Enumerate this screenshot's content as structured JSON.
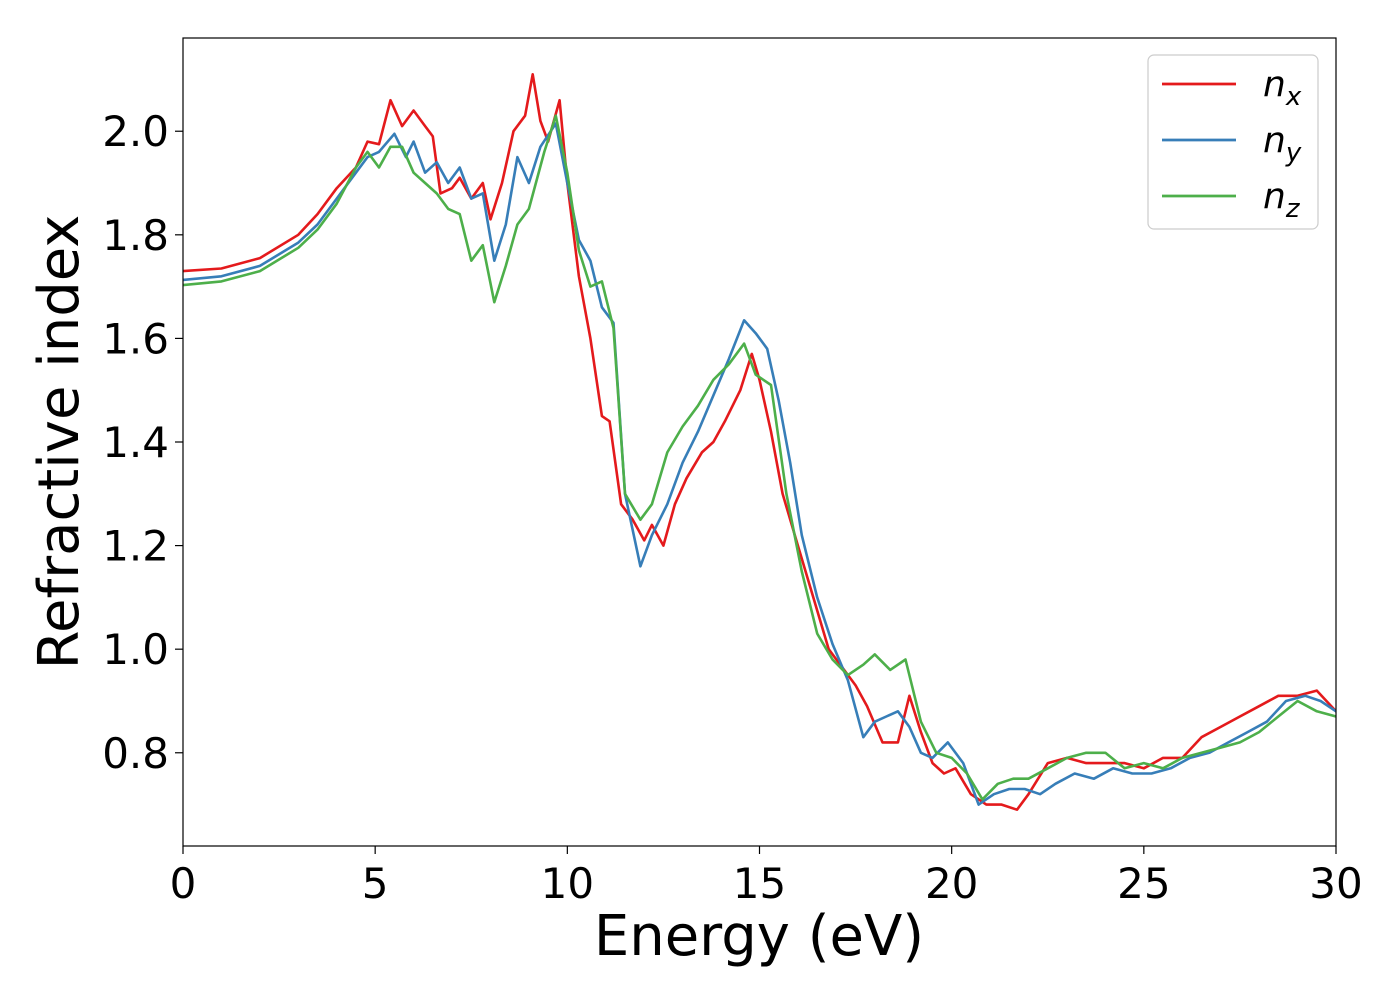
{
  "chart_data": {
    "type": "line",
    "title": "",
    "xlabel": "Energy (eV)",
    "ylabel": "Refractive index",
    "xlim": [
      0,
      30
    ],
    "ylim": [
      0.62,
      2.18
    ],
    "xticks": [
      0,
      5,
      10,
      15,
      20,
      25,
      30
    ],
    "yticks": [
      0.8,
      1.0,
      1.2,
      1.4,
      1.6,
      1.8,
      2.0
    ],
    "xtick_labels": [
      "0",
      "5",
      "10",
      "15",
      "20",
      "25",
      "30"
    ],
    "ytick_labels": [
      "0.8",
      "1.0",
      "1.2",
      "1.4",
      "1.6",
      "1.8",
      "2.0"
    ],
    "grid": false,
    "legend_position": "top-right",
    "series": [
      {
        "name": "n_x",
        "label_main": "n",
        "label_sub": "x",
        "color": "#e41a1c",
        "points": [
          [
            0,
            1.73
          ],
          [
            1,
            1.735
          ],
          [
            2,
            1.755
          ],
          [
            3,
            1.8
          ],
          [
            3.5,
            1.84
          ],
          [
            4,
            1.89
          ],
          [
            4.5,
            1.93
          ],
          [
            4.8,
            1.98
          ],
          [
            5.1,
            1.975
          ],
          [
            5.4,
            2.06
          ],
          [
            5.7,
            2.01
          ],
          [
            6.0,
            2.04
          ],
          [
            6.3,
            2.01
          ],
          [
            6.5,
            1.99
          ],
          [
            6.7,
            1.88
          ],
          [
            7.0,
            1.89
          ],
          [
            7.2,
            1.91
          ],
          [
            7.5,
            1.87
          ],
          [
            7.8,
            1.9
          ],
          [
            8.0,
            1.83
          ],
          [
            8.3,
            1.9
          ],
          [
            8.6,
            2.0
          ],
          [
            8.9,
            2.03
          ],
          [
            9.1,
            2.11
          ],
          [
            9.3,
            2.02
          ],
          [
            9.5,
            1.98
          ],
          [
            9.8,
            2.06
          ],
          [
            10.0,
            1.9
          ],
          [
            10.3,
            1.72
          ],
          [
            10.6,
            1.6
          ],
          [
            10.9,
            1.45
          ],
          [
            11.1,
            1.44
          ],
          [
            11.4,
            1.28
          ],
          [
            11.7,
            1.25
          ],
          [
            12.0,
            1.21
          ],
          [
            12.2,
            1.24
          ],
          [
            12.5,
            1.2
          ],
          [
            12.8,
            1.28
          ],
          [
            13.1,
            1.33
          ],
          [
            13.5,
            1.38
          ],
          [
            13.8,
            1.4
          ],
          [
            14.1,
            1.44
          ],
          [
            14.5,
            1.5
          ],
          [
            14.8,
            1.57
          ],
          [
            15.0,
            1.52
          ],
          [
            15.3,
            1.42
          ],
          [
            15.6,
            1.3
          ],
          [
            16.0,
            1.2
          ],
          [
            16.4,
            1.1
          ],
          [
            16.8,
            1.0
          ],
          [
            17.2,
            0.96
          ],
          [
            17.5,
            0.93
          ],
          [
            17.8,
            0.89
          ],
          [
            18.2,
            0.82
          ],
          [
            18.6,
            0.82
          ],
          [
            18.9,
            0.91
          ],
          [
            19.2,
            0.84
          ],
          [
            19.5,
            0.78
          ],
          [
            19.8,
            0.76
          ],
          [
            20.1,
            0.77
          ],
          [
            20.5,
            0.72
          ],
          [
            20.9,
            0.7
          ],
          [
            21.3,
            0.7
          ],
          [
            21.7,
            0.69
          ],
          [
            22.0,
            0.72
          ],
          [
            22.5,
            0.78
          ],
          [
            23.0,
            0.79
          ],
          [
            23.5,
            0.78
          ],
          [
            24.0,
            0.78
          ],
          [
            24.5,
            0.78
          ],
          [
            25.0,
            0.77
          ],
          [
            25.5,
            0.79
          ],
          [
            26.0,
            0.79
          ],
          [
            26.5,
            0.83
          ],
          [
            27.0,
            0.85
          ],
          [
            27.5,
            0.87
          ],
          [
            28.0,
            0.89
          ],
          [
            28.5,
            0.91
          ],
          [
            29.0,
            0.91
          ],
          [
            29.5,
            0.92
          ],
          [
            30.0,
            0.88
          ]
        ]
      },
      {
        "name": "n_y",
        "label_main": "n",
        "label_sub": "y",
        "color": "#377eb8",
        "points": [
          [
            0,
            1.713
          ],
          [
            1,
            1.72
          ],
          [
            2,
            1.74
          ],
          [
            3,
            1.785
          ],
          [
            3.5,
            1.82
          ],
          [
            4,
            1.87
          ],
          [
            4.5,
            1.92
          ],
          [
            4.8,
            1.95
          ],
          [
            5.1,
            1.96
          ],
          [
            5.5,
            1.995
          ],
          [
            5.8,
            1.95
          ],
          [
            6.0,
            1.98
          ],
          [
            6.3,
            1.92
          ],
          [
            6.6,
            1.94
          ],
          [
            6.9,
            1.9
          ],
          [
            7.2,
            1.93
          ],
          [
            7.5,
            1.87
          ],
          [
            7.8,
            1.88
          ],
          [
            8.1,
            1.75
          ],
          [
            8.4,
            1.82
          ],
          [
            8.7,
            1.95
          ],
          [
            9.0,
            1.9
          ],
          [
            9.3,
            1.97
          ],
          [
            9.7,
            2.015
          ],
          [
            10.0,
            1.9
          ],
          [
            10.3,
            1.79
          ],
          [
            10.6,
            1.75
          ],
          [
            10.9,
            1.66
          ],
          [
            11.2,
            1.63
          ],
          [
            11.5,
            1.3
          ],
          [
            11.9,
            1.16
          ],
          [
            12.2,
            1.22
          ],
          [
            12.6,
            1.28
          ],
          [
            13.0,
            1.36
          ],
          [
            13.4,
            1.42
          ],
          [
            13.8,
            1.49
          ],
          [
            14.2,
            1.56
          ],
          [
            14.6,
            1.635
          ],
          [
            14.9,
            1.61
          ],
          [
            15.2,
            1.58
          ],
          [
            15.5,
            1.48
          ],
          [
            15.8,
            1.36
          ],
          [
            16.1,
            1.22
          ],
          [
            16.5,
            1.1
          ],
          [
            16.9,
            1.01
          ],
          [
            17.3,
            0.94
          ],
          [
            17.7,
            0.83
          ],
          [
            18.0,
            0.86
          ],
          [
            18.3,
            0.87
          ],
          [
            18.6,
            0.88
          ],
          [
            18.9,
            0.85
          ],
          [
            19.2,
            0.8
          ],
          [
            19.5,
            0.79
          ],
          [
            19.9,
            0.82
          ],
          [
            20.3,
            0.78
          ],
          [
            20.7,
            0.7
          ],
          [
            21.1,
            0.72
          ],
          [
            21.5,
            0.73
          ],
          [
            21.9,
            0.73
          ],
          [
            22.3,
            0.72
          ],
          [
            22.7,
            0.74
          ],
          [
            23.2,
            0.76
          ],
          [
            23.7,
            0.75
          ],
          [
            24.2,
            0.77
          ],
          [
            24.7,
            0.76
          ],
          [
            25.2,
            0.76
          ],
          [
            25.7,
            0.77
          ],
          [
            26.2,
            0.79
          ],
          [
            26.7,
            0.8
          ],
          [
            27.2,
            0.82
          ],
          [
            27.7,
            0.84
          ],
          [
            28.2,
            0.86
          ],
          [
            28.7,
            0.9
          ],
          [
            29.2,
            0.91
          ],
          [
            29.6,
            0.9
          ],
          [
            30.0,
            0.88
          ]
        ]
      },
      {
        "name": "n_z",
        "label_main": "n",
        "label_sub": "z",
        "color": "#4daf4a",
        "points": [
          [
            0,
            1.703
          ],
          [
            1,
            1.71
          ],
          [
            2,
            1.73
          ],
          [
            3,
            1.775
          ],
          [
            3.5,
            1.81
          ],
          [
            4,
            1.86
          ],
          [
            4.5,
            1.93
          ],
          [
            4.8,
            1.96
          ],
          [
            5.1,
            1.93
          ],
          [
            5.4,
            1.97
          ],
          [
            5.7,
            1.97
          ],
          [
            6.0,
            1.92
          ],
          [
            6.3,
            1.9
          ],
          [
            6.6,
            1.88
          ],
          [
            6.9,
            1.85
          ],
          [
            7.2,
            1.84
          ],
          [
            7.5,
            1.75
          ],
          [
            7.8,
            1.78
          ],
          [
            8.1,
            1.67
          ],
          [
            8.4,
            1.74
          ],
          [
            8.7,
            1.82
          ],
          [
            9.0,
            1.85
          ],
          [
            9.4,
            1.96
          ],
          [
            9.7,
            2.03
          ],
          [
            10.0,
            1.92
          ],
          [
            10.3,
            1.77
          ],
          [
            10.6,
            1.7
          ],
          [
            10.9,
            1.71
          ],
          [
            11.2,
            1.62
          ],
          [
            11.5,
            1.3
          ],
          [
            11.9,
            1.25
          ],
          [
            12.2,
            1.28
          ],
          [
            12.6,
            1.38
          ],
          [
            13.0,
            1.43
          ],
          [
            13.4,
            1.47
          ],
          [
            13.8,
            1.52
          ],
          [
            14.2,
            1.55
          ],
          [
            14.6,
            1.59
          ],
          [
            14.9,
            1.53
          ],
          [
            15.3,
            1.51
          ],
          [
            15.7,
            1.3
          ],
          [
            16.1,
            1.15
          ],
          [
            16.5,
            1.03
          ],
          [
            16.9,
            0.98
          ],
          [
            17.3,
            0.95
          ],
          [
            17.7,
            0.97
          ],
          [
            18.0,
            0.99
          ],
          [
            18.4,
            0.96
          ],
          [
            18.8,
            0.98
          ],
          [
            19.2,
            0.86
          ],
          [
            19.6,
            0.8
          ],
          [
            20.0,
            0.79
          ],
          [
            20.4,
            0.76
          ],
          [
            20.8,
            0.71
          ],
          [
            21.2,
            0.74
          ],
          [
            21.6,
            0.75
          ],
          [
            22.0,
            0.75
          ],
          [
            22.5,
            0.77
          ],
          [
            23.0,
            0.79
          ],
          [
            23.5,
            0.8
          ],
          [
            24.0,
            0.8
          ],
          [
            24.5,
            0.77
          ],
          [
            25.0,
            0.78
          ],
          [
            25.5,
            0.77
          ],
          [
            26.0,
            0.79
          ],
          [
            26.5,
            0.8
          ],
          [
            27.0,
            0.81
          ],
          [
            27.5,
            0.82
          ],
          [
            28.0,
            0.84
          ],
          [
            28.5,
            0.87
          ],
          [
            29.0,
            0.9
          ],
          [
            29.5,
            0.88
          ],
          [
            30.0,
            0.87
          ]
        ]
      }
    ]
  }
}
